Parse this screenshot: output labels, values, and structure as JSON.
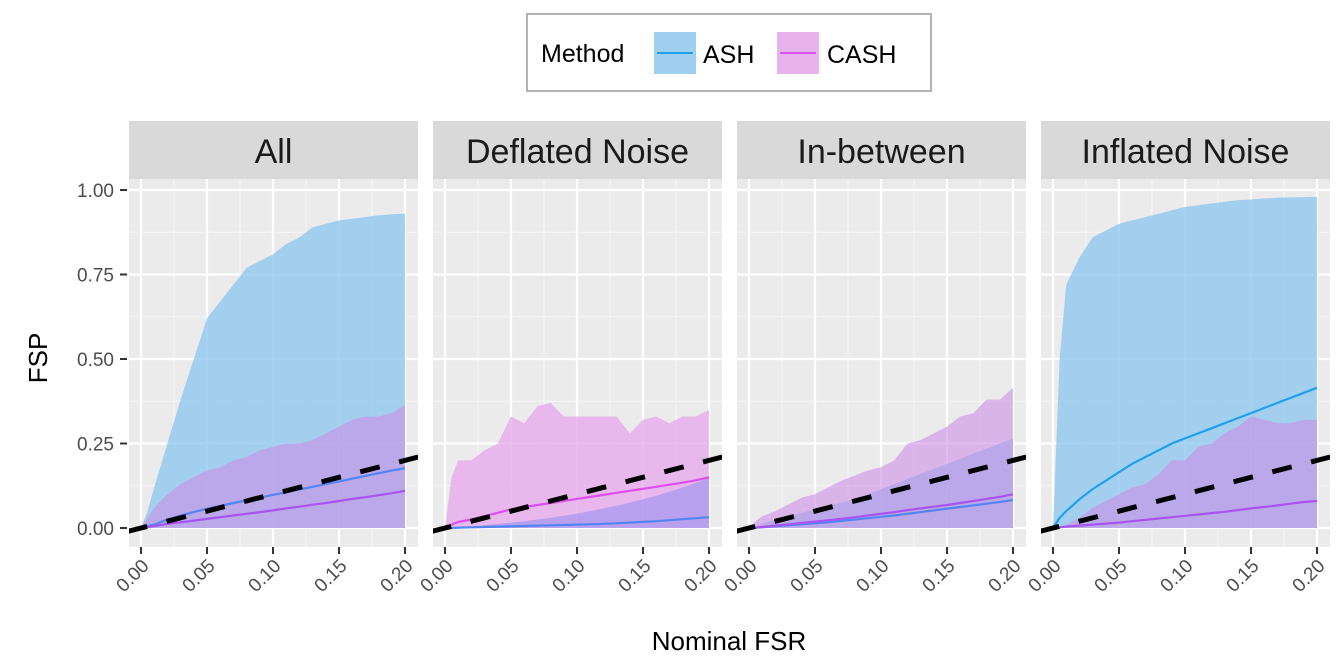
{
  "chart_data": {
    "type": "area",
    "title": "",
    "xlabel": "Nominal FSR",
    "ylabel": "FSP",
    "xlim": [
      0.0,
      0.2
    ],
    "ylim": [
      0.0,
      1.0
    ],
    "x_ticks": [
      "0.00",
      "0.05",
      "0.10",
      "0.15",
      "0.20"
    ],
    "y_ticks": [
      "0.00",
      "0.25",
      "0.50",
      "0.75",
      "1.00"
    ],
    "grid": true,
    "legend": {
      "title": "Method",
      "position": "top",
      "entries": [
        {
          "name": "ASH",
          "line_color": "#1ea0ef",
          "fill_color": "#9fcfee"
        },
        {
          "name": "CASH",
          "line_color": "#d84ef0",
          "fill_color": "#e8b3ec"
        }
      ]
    },
    "reference_line": {
      "description": "y = x",
      "style": "dashed",
      "color": "#000000"
    },
    "x": [
      0.0,
      0.005,
      0.01,
      0.02,
      0.03,
      0.04,
      0.05,
      0.06,
      0.07,
      0.08,
      0.09,
      0.1,
      0.11,
      0.12,
      0.13,
      0.14,
      0.15,
      0.16,
      0.17,
      0.18,
      0.19,
      0.2
    ],
    "panels": [
      {
        "name": "All",
        "series": [
          {
            "name": "ASH",
            "mean": [
              0.0,
              0.005,
              0.01,
              0.025,
              0.037,
              0.047,
              0.057,
              0.065,
              0.074,
              0.082,
              0.09,
              0.098,
              0.106,
              0.114,
              0.122,
              0.13,
              0.138,
              0.146,
              0.154,
              0.162,
              0.17,
              0.177
            ],
            "upper": [
              0.0,
              0.05,
              0.12,
              0.25,
              0.38,
              0.5,
              0.62,
              0.67,
              0.72,
              0.77,
              0.79,
              0.81,
              0.84,
              0.86,
              0.89,
              0.9,
              0.91,
              0.915,
              0.92,
              0.925,
              0.928,
              0.93
            ],
            "lower": [
              0.0,
              0.0,
              0.0,
              0.0,
              0.0,
              0.0,
              0.0,
              0.0,
              0.0,
              0.0,
              0.0,
              0.0,
              0.0,
              0.0,
              0.0,
              0.0,
              0.0,
              0.0,
              0.0,
              0.0,
              0.0,
              0.0
            ]
          },
          {
            "name": "CASH",
            "mean": [
              0.0,
              0.003,
              0.006,
              0.012,
              0.017,
              0.022,
              0.027,
              0.032,
              0.037,
              0.042,
              0.047,
              0.052,
              0.058,
              0.063,
              0.069,
              0.074,
              0.08,
              0.086,
              0.091,
              0.097,
              0.103,
              0.11
            ],
            "upper": [
              0.0,
              0.03,
              0.06,
              0.1,
              0.13,
              0.15,
              0.17,
              0.18,
              0.2,
              0.21,
              0.23,
              0.24,
              0.25,
              0.25,
              0.26,
              0.28,
              0.3,
              0.32,
              0.33,
              0.33,
              0.34,
              0.365
            ],
            "lower": [
              0.0,
              0.0,
              0.0,
              0.0,
              0.0,
              0.0,
              0.0,
              0.0,
              0.0,
              0.0,
              0.0,
              0.0,
              0.0,
              0.0,
              0.0,
              0.0,
              0.0,
              0.0,
              0.0,
              0.0,
              0.0,
              0.0
            ]
          }
        ]
      },
      {
        "name": "Deflated Noise",
        "series": [
          {
            "name": "ASH",
            "mean": [
              0.0,
              0.0,
              0.001,
              0.002,
              0.003,
              0.004,
              0.005,
              0.006,
              0.007,
              0.008,
              0.009,
              0.01,
              0.011,
              0.012,
              0.014,
              0.016,
              0.018,
              0.02,
              0.023,
              0.026,
              0.029,
              0.032
            ],
            "upper": [
              0.0,
              0.0,
              0.001,
              0.005,
              0.008,
              0.012,
              0.016,
              0.02,
              0.025,
              0.03,
              0.036,
              0.042,
              0.05,
              0.058,
              0.066,
              0.075,
              0.085,
              0.095,
              0.107,
              0.12,
              0.133,
              0.148
            ],
            "lower": [
              0.0,
              0.0,
              0.0,
              0.0,
              0.0,
              0.0,
              0.0,
              0.0,
              0.0,
              0.0,
              0.0,
              0.0,
              0.0,
              0.0,
              0.0,
              0.0,
              0.0,
              0.0,
              0.0,
              0.0,
              0.0,
              0.0
            ]
          },
          {
            "name": "CASH",
            "mean": [
              0.0,
              0.01,
              0.018,
              0.025,
              0.035,
              0.045,
              0.055,
              0.062,
              0.068,
              0.074,
              0.08,
              0.086,
              0.092,
              0.098,
              0.104,
              0.11,
              0.116,
              0.122,
              0.128,
              0.134,
              0.141,
              0.15
            ],
            "upper": [
              0.0,
              0.15,
              0.2,
              0.2,
              0.23,
              0.25,
              0.33,
              0.31,
              0.36,
              0.37,
              0.33,
              0.33,
              0.33,
              0.33,
              0.33,
              0.28,
              0.32,
              0.33,
              0.31,
              0.33,
              0.33,
              0.35
            ],
            "lower": [
              0.0,
              0.0,
              0.0,
              0.0,
              0.0,
              0.0,
              0.0,
              0.0,
              0.0,
              0.0,
              0.0,
              0.0,
              0.0,
              0.0,
              0.0,
              0.0,
              0.0,
              0.0,
              0.0,
              0.0,
              0.0,
              0.0
            ]
          }
        ]
      },
      {
        "name": "In-between",
        "series": [
          {
            "name": "ASH",
            "mean": [
              0.0,
              0.001,
              0.002,
              0.005,
              0.008,
              0.011,
              0.014,
              0.017,
              0.021,
              0.025,
              0.029,
              0.033,
              0.037,
              0.042,
              0.047,
              0.052,
              0.057,
              0.062,
              0.067,
              0.072,
              0.077,
              0.083
            ],
            "upper": [
              0.0,
              0.005,
              0.012,
              0.025,
              0.035,
              0.045,
              0.055,
              0.065,
              0.075,
              0.085,
              0.1,
              0.115,
              0.13,
              0.145,
              0.16,
              0.175,
              0.19,
              0.205,
              0.22,
              0.235,
              0.25,
              0.265
            ],
            "lower": [
              0.0,
              0.0,
              0.0,
              0.0,
              0.0,
              0.0,
              0.0,
              0.0,
              0.0,
              0.0,
              0.0,
              0.0,
              0.0,
              0.0,
              0.0,
              0.0,
              0.0,
              0.0,
              0.0,
              0.0,
              0.0,
              0.0
            ]
          },
          {
            "name": "CASH",
            "mean": [
              0.0,
              0.001,
              0.003,
              0.007,
              0.011,
              0.015,
              0.019,
              0.023,
              0.027,
              0.032,
              0.037,
              0.042,
              0.047,
              0.053,
              0.058,
              0.063,
              0.068,
              0.074,
              0.08,
              0.086,
              0.092,
              0.1
            ],
            "upper": [
              0.0,
              0.02,
              0.035,
              0.05,
              0.07,
              0.09,
              0.1,
              0.12,
              0.14,
              0.155,
              0.17,
              0.18,
              0.2,
              0.25,
              0.26,
              0.28,
              0.3,
              0.33,
              0.34,
              0.38,
              0.38,
              0.415
            ],
            "lower": [
              0.0,
              0.0,
              0.0,
              0.0,
              0.0,
              0.0,
              0.0,
              0.0,
              0.0,
              0.0,
              0.0,
              0.0,
              0.0,
              0.0,
              0.0,
              0.0,
              0.0,
              0.0,
              0.0,
              0.0,
              0.0,
              0.0
            ]
          }
        ]
      },
      {
        "name": "Inflated Noise",
        "series": [
          {
            "name": "ASH",
            "mean": [
              0.0,
              0.03,
              0.05,
              0.085,
              0.115,
              0.14,
              0.165,
              0.19,
              0.21,
              0.23,
              0.25,
              0.265,
              0.28,
              0.295,
              0.31,
              0.325,
              0.34,
              0.355,
              0.37,
              0.385,
              0.4,
              0.415
            ],
            "upper": [
              0.0,
              0.5,
              0.72,
              0.8,
              0.86,
              0.88,
              0.9,
              0.91,
              0.92,
              0.93,
              0.94,
              0.95,
              0.955,
              0.96,
              0.965,
              0.97,
              0.972,
              0.975,
              0.977,
              0.978,
              0.979,
              0.98
            ],
            "lower": [
              0.0,
              0.0,
              0.0,
              0.0,
              0.0,
              0.0,
              0.0,
              0.0,
              0.0,
              0.0,
              0.0,
              0.0,
              0.0,
              0.0,
              0.0,
              0.0,
              0.0,
              0.0,
              0.0,
              0.0,
              0.0,
              0.0
            ]
          },
          {
            "name": "CASH",
            "mean": [
              0.0,
              0.002,
              0.004,
              0.007,
              0.01,
              0.013,
              0.016,
              0.02,
              0.024,
              0.028,
              0.032,
              0.036,
              0.04,
              0.044,
              0.048,
              0.053,
              0.058,
              0.062,
              0.067,
              0.072,
              0.077,
              0.08
            ],
            "upper": [
              0.0,
              0.0,
              0.01,
              0.03,
              0.06,
              0.08,
              0.1,
              0.12,
              0.13,
              0.16,
              0.2,
              0.2,
              0.24,
              0.25,
              0.28,
              0.3,
              0.33,
              0.32,
              0.31,
              0.31,
              0.32,
              0.32
            ],
            "lower": [
              0.0,
              0.0,
              0.0,
              0.0,
              0.0,
              0.0,
              0.0,
              0.0,
              0.0,
              0.0,
              0.0,
              0.0,
              0.0,
              0.0,
              0.0,
              0.0,
              0.0,
              0.0,
              0.0,
              0.0,
              0.0,
              0.0
            ]
          }
        ]
      }
    ]
  }
}
